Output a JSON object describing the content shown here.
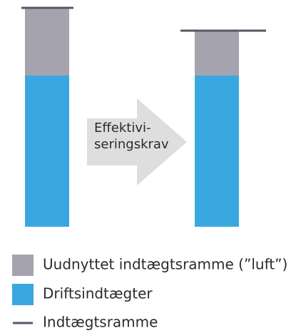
{
  "chart_data": {
    "type": "bar",
    "stacked": true,
    "categories": [
      null,
      null
    ],
    "ylim": [
      0,
      318
    ],
    "series": [
      {
        "name": "Driftsindtægter",
        "color": "#3aa8e0",
        "values": [
          212,
          212
        ]
      },
      {
        "name": "Uudnyttet indtægtsramme (”luft”)",
        "color": "#a4a3ae",
        "values": [
          94,
          62
        ]
      }
    ],
    "frame_series": {
      "name": "Indtægtsramme",
      "color": "#535a64",
      "values": [
        307,
        275
      ]
    },
    "annotation": [
      "Effektivi-",
      "seringskrav"
    ]
  }
}
